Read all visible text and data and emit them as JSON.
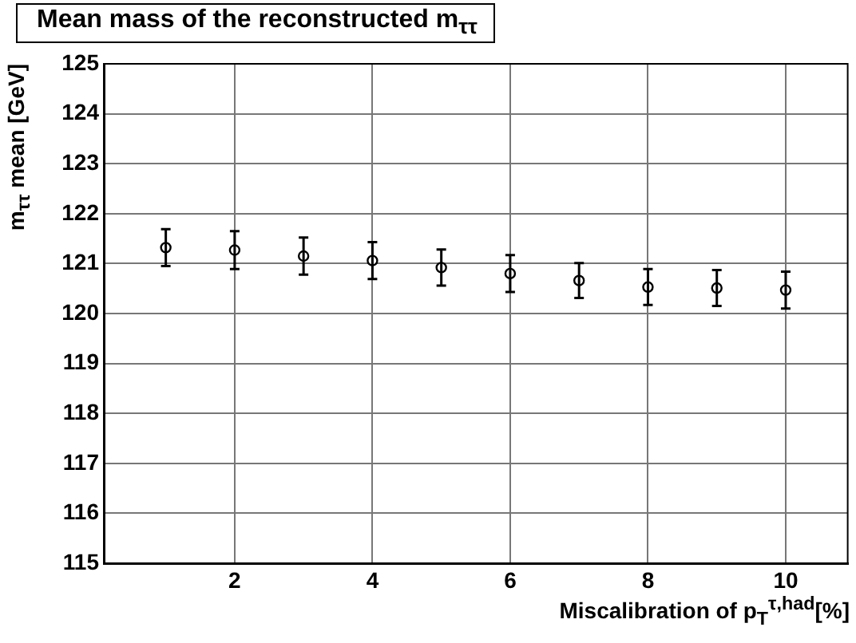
{
  "chart_data": {
    "type": "scatter",
    "title": "Mean mass of the reconstructed m$_{ττ}$",
    "xlabel": "Miscalibration of p$_{T}$$^{τ,had}$[%]",
    "ylabel": "m$_{ττ}$ mean [GeV]",
    "x": [
      1,
      2,
      3,
      4,
      5,
      6,
      7,
      8,
      9,
      10
    ],
    "values": [
      121.32,
      121.27,
      121.15,
      121.06,
      120.92,
      120.8,
      120.66,
      120.53,
      120.51,
      120.47
    ],
    "errors": [
      0.37,
      0.38,
      0.37,
      0.37,
      0.36,
      0.37,
      0.35,
      0.36,
      0.36,
      0.37
    ],
    "color": "#000000",
    "marker": "circle",
    "grid": true,
    "legend": false,
    "xlim": [
      0.1,
      10.9
    ],
    "xticks": [
      2,
      4,
      6,
      8,
      10
    ],
    "ylim": [
      115,
      125
    ],
    "yticks": [
      115,
      116,
      117,
      118,
      119,
      120,
      121,
      122,
      123,
      124,
      125
    ]
  }
}
